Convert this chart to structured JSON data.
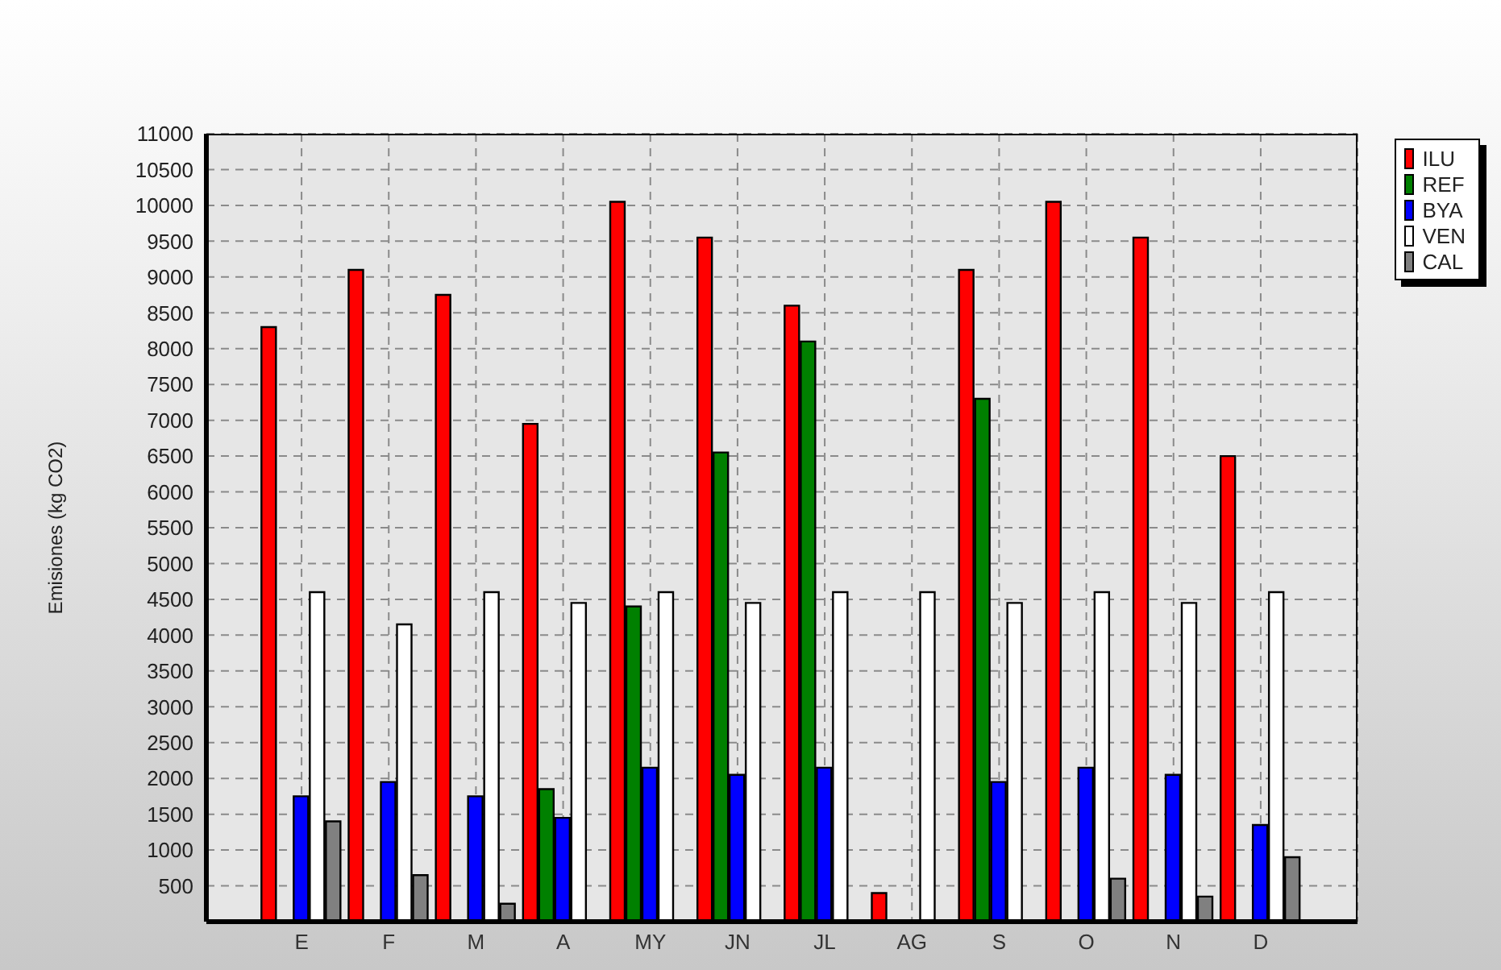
{
  "chart_data": {
    "type": "bar",
    "ylabel": "Emisiones (kg CO2)",
    "categories": [
      "E",
      "F",
      "M",
      "A",
      "MY",
      "JN",
      "JL",
      "AG",
      "S",
      "O",
      "N",
      "D"
    ],
    "series": [
      {
        "name": "ILU",
        "color": "#ff0000",
        "values": [
          8300,
          9100,
          8750,
          6950,
          10050,
          9550,
          8600,
          400,
          9100,
          10050,
          9550,
          6500
        ]
      },
      {
        "name": "REF",
        "color": "#008000",
        "values": [
          null,
          null,
          null,
          1850,
          4400,
          6550,
          8100,
          null,
          7300,
          null,
          null,
          null
        ]
      },
      {
        "name": "BYA",
        "color": "#0000ff",
        "values": [
          1750,
          1950,
          1750,
          1450,
          2150,
          2050,
          2150,
          null,
          1950,
          2150,
          2050,
          1350
        ]
      },
      {
        "name": "VEN",
        "color": "#ffffff",
        "values": [
          4600,
          4150,
          4600,
          4450,
          4600,
          4450,
          4600,
          4600,
          4450,
          4600,
          4450,
          4600
        ]
      },
      {
        "name": "CAL",
        "color": "#808080",
        "values": [
          1400,
          650,
          250,
          null,
          null,
          null,
          null,
          null,
          null,
          600,
          350,
          900
        ]
      }
    ],
    "ylim": [
      0,
      11000
    ],
    "yticks": [
      500,
      1000,
      1500,
      2000,
      2500,
      3000,
      3500,
      4000,
      4500,
      5000,
      5500,
      6000,
      6500,
      7000,
      7500,
      8000,
      8500,
      9000,
      9500,
      10000,
      10500,
      11000
    ],
    "grid": true,
    "legend": "top right"
  }
}
